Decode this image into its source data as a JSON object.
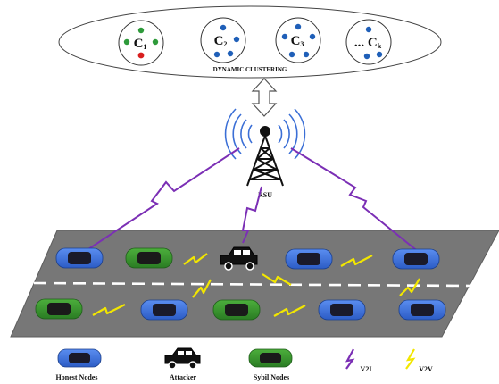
{
  "clustering": {
    "title": "DYNAMIC CLUSTERING",
    "clusters": [
      {
        "label": "C",
        "sub": "1",
        "dots": [
          "#2e9a3a",
          "#2e9a3a",
          "#2e9a3a",
          "#2e9a3a",
          "#d81e1e"
        ]
      },
      {
        "label": "C",
        "sub": "2",
        "dots": [
          "#1f5fb8",
          "#1f5fb8",
          "#1f5fb8",
          "#1f5fb8",
          "#1f5fb8"
        ]
      },
      {
        "label": "C",
        "sub": "3",
        "dots": [
          "#1f5fb8",
          "#1f5fb8",
          "#1f5fb8",
          "#1f5fb8",
          "#1f5fb8"
        ]
      },
      {
        "label": "... C",
        "sub": "k",
        "dots": [
          "#1f5fb8",
          "#1f5fb8",
          "#1f5fb8",
          "#1f5fb8"
        ]
      }
    ]
  },
  "rsu": {
    "label": "RSU"
  },
  "legend": {
    "honest": "Honest Nodes",
    "attacker": "Attacker",
    "sybil": "Sybil Nodes",
    "v2i": "V2I",
    "v2v": "V2V"
  },
  "colors": {
    "honest": "#3a6fd8",
    "sybil": "#2f8f2f",
    "attacker": "#111111",
    "v2i": "#7b2fb5",
    "v2v": "#f2e600",
    "road": "#777777"
  }
}
